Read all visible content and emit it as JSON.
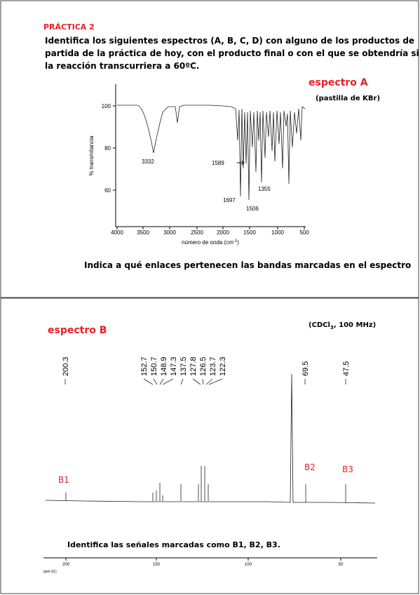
{
  "top": {
    "heading": "PRÁCTICA 2",
    "instructions": [
      "Identifica los siguientes espectros (A, B, C, D) con alguno de los productos de",
      "partida de la práctica de hoy, con el producto final o con el que se obtendría si",
      "la reacción transcurriera a 60ºC."
    ],
    "spectrum_label": "espectro A",
    "sample_note": "(pastilla de KBr)",
    "chart": {
      "y_axis_label": "% transmitancia",
      "x_axis_label": [
        "número de onda (cm",
        "-1",
        ")"
      ],
      "xticks": [
        4000,
        3500,
        3000,
        2500,
        2000,
        1500,
        1000,
        500
      ],
      "yticks": [
        100,
        80,
        60
      ],
      "peak_labels": [
        3332,
        1589,
        1697,
        1506,
        1355
      ]
    },
    "question": "Indica a qué enlaces pertenecen las bandas marcadas en el espectro"
  },
  "bottom": {
    "spectrum_label": "espectro B",
    "solvent_note": [
      "(CDCl",
      "3",
      ", 100 MHz)"
    ],
    "peak_labels": [
      200.3,
      152.7,
      150.7,
      148.9,
      147.3,
      137.5,
      127.8,
      126.5,
      123.7,
      122.3,
      69.5,
      47.5
    ],
    "markers": [
      "B1",
      "B2",
      "B3"
    ],
    "question": "Identifica las señales marcadas como B1, B2, B3.",
    "xticks": [
      200,
      150,
      100,
      50
    ],
    "x_axis_label": "ppm (t1)"
  }
}
